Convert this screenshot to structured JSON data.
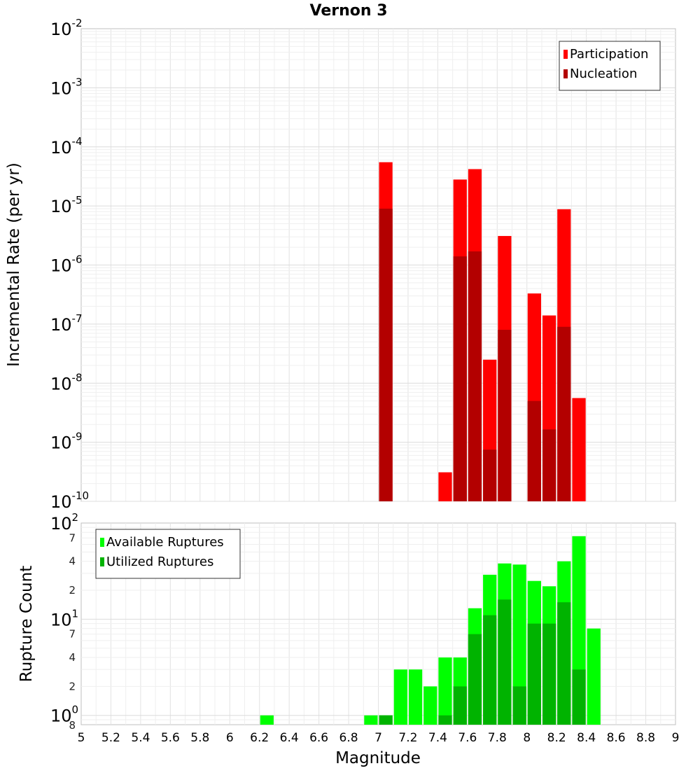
{
  "chart_data": {
    "type": "bar",
    "title": "Vernon 3",
    "xlabel": "Magnitude",
    "xlim": [
      5,
      9
    ],
    "bin_width": 0.1,
    "x_ticks": [
      "5",
      "5.2",
      "5.4",
      "5.6",
      "5.8",
      "6",
      "6.2",
      "6.4",
      "6.6",
      "6.8",
      "7",
      "7.2",
      "7.4",
      "7.6",
      "7.8",
      "8",
      "8.2",
      "8.4",
      "8.6",
      "8.8",
      "9"
    ],
    "top_panel": {
      "ylabel": "Incremental Rate (per yr)",
      "yscale": "log",
      "ylim": [
        1e-10,
        0.01
      ],
      "y_ticks": [
        {
          "value": 0.01,
          "base": "10",
          "exp": "-2"
        },
        {
          "value": 0.001,
          "base": "10",
          "exp": "-3"
        },
        {
          "value": 0.0001,
          "base": "10",
          "exp": "-4"
        },
        {
          "value": 1e-05,
          "base": "10",
          "exp": "-5"
        },
        {
          "value": 1e-06,
          "base": "10",
          "exp": "-6"
        },
        {
          "value": 1e-07,
          "base": "10",
          "exp": "-7"
        },
        {
          "value": 1e-08,
          "base": "10",
          "exp": "-8"
        },
        {
          "value": 1e-09,
          "base": "10",
          "exp": "-9"
        },
        {
          "value": 1e-10,
          "base": "10",
          "exp": "-10"
        }
      ],
      "legend": {
        "position": "top-right",
        "entries": [
          {
            "label": "Participation",
            "color": "#ff0000"
          },
          {
            "label": "Nucleation",
            "color": "#b30000"
          }
        ]
      },
      "series": [
        {
          "name": "Participation",
          "color": "#ff0000",
          "points": [
            {
              "x": 7.05,
              "y": 5.5e-05
            },
            {
              "x": 7.45,
              "y": 3.1e-10
            },
            {
              "x": 7.55,
              "y": 2.8e-05
            },
            {
              "x": 7.65,
              "y": 4.2e-05
            },
            {
              "x": 7.75,
              "y": 2.5e-08
            },
            {
              "x": 7.85,
              "y": 3.1e-06
            },
            {
              "x": 8.05,
              "y": 3.3e-07
            },
            {
              "x": 8.15,
              "y": 1.4e-07
            },
            {
              "x": 8.25,
              "y": 8.8e-06
            },
            {
              "x": 8.35,
              "y": 5.6e-09
            }
          ]
        },
        {
          "name": "Nucleation",
          "color": "#b30000",
          "points": [
            {
              "x": 7.05,
              "y": 9e-06
            },
            {
              "x": 7.55,
              "y": 1.4e-06
            },
            {
              "x": 7.65,
              "y": 1.7e-06
            },
            {
              "x": 7.75,
              "y": 7.5e-10
            },
            {
              "x": 7.85,
              "y": 8e-08
            },
            {
              "x": 8.05,
              "y": 5e-09
            },
            {
              "x": 8.15,
              "y": 1.65e-09
            },
            {
              "x": 8.25,
              "y": 9e-08
            }
          ]
        }
      ]
    },
    "bottom_panel": {
      "ylabel": "Rupture Count",
      "yscale": "log",
      "ylim": [
        0.8,
        100
      ],
      "y_major_ticks": [
        {
          "value": 100,
          "base": "10",
          "exp": "2"
        },
        {
          "value": 10,
          "base": "10",
          "exp": "1"
        },
        {
          "value": 1,
          "base": "10",
          "exp": "0"
        }
      ],
      "y_minor_ticks": [
        {
          "value": 70,
          "label": "7"
        },
        {
          "value": 40,
          "label": "4"
        },
        {
          "value": 20,
          "label": "2"
        },
        {
          "value": 7,
          "label": "7"
        },
        {
          "value": 4,
          "label": "4"
        },
        {
          "value": 2,
          "label": "2"
        },
        {
          "value": 0.8,
          "label": "8"
        }
      ],
      "legend": {
        "position": "top-left",
        "entries": [
          {
            "label": "Available Ruptures",
            "color": "#00ff00"
          },
          {
            "label": "Utilized Ruptures",
            "color": "#00b300"
          }
        ]
      },
      "series": [
        {
          "name": "Available Ruptures",
          "color": "#00ff00",
          "points": [
            {
              "x": 6.25,
              "y": 1
            },
            {
              "x": 6.95,
              "y": 1
            },
            {
              "x": 7.05,
              "y": 1
            },
            {
              "x": 7.15,
              "y": 3
            },
            {
              "x": 7.25,
              "y": 3
            },
            {
              "x": 7.35,
              "y": 2
            },
            {
              "x": 7.45,
              "y": 4
            },
            {
              "x": 7.55,
              "y": 4
            },
            {
              "x": 7.65,
              "y": 13
            },
            {
              "x": 7.75,
              "y": 29
            },
            {
              "x": 7.85,
              "y": 38
            },
            {
              "x": 7.95,
              "y": 37
            },
            {
              "x": 8.05,
              "y": 25
            },
            {
              "x": 8.15,
              "y": 22
            },
            {
              "x": 8.25,
              "y": 40
            },
            {
              "x": 8.35,
              "y": 73
            },
            {
              "x": 8.45,
              "y": 8
            }
          ]
        },
        {
          "name": "Utilized Ruptures",
          "color": "#00b300",
          "points": [
            {
              "x": 7.05,
              "y": 1
            },
            {
              "x": 7.45,
              "y": 1
            },
            {
              "x": 7.55,
              "y": 2
            },
            {
              "x": 7.65,
              "y": 7
            },
            {
              "x": 7.75,
              "y": 11
            },
            {
              "x": 7.85,
              "y": 16
            },
            {
              "x": 7.95,
              "y": 2
            },
            {
              "x": 8.05,
              "y": 9
            },
            {
              "x": 8.15,
              "y": 9
            },
            {
              "x": 8.25,
              "y": 15
            },
            {
              "x": 8.35,
              "y": 3
            }
          ]
        }
      ]
    }
  }
}
